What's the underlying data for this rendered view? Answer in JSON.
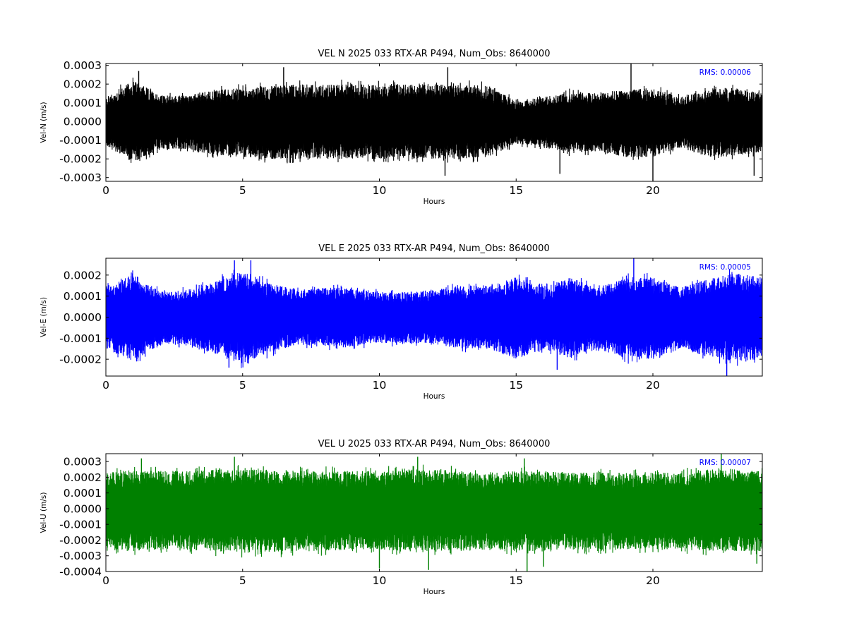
{
  "chart_data": [
    {
      "type": "line",
      "title": "VEL N 2025 033 RTX-AR  P494, Num_Obs: 8640000",
      "xlabel": "Hours",
      "ylabel": "Vel-N (m/s)",
      "xlim": [
        0,
        24
      ],
      "ylim": [
        -0.00032,
        0.00031
      ],
      "xticks": [
        "0",
        "5",
        "10",
        "15",
        "20"
      ],
      "yticks": [
        "0.0003",
        "0.0002",
        "0.0001",
        "0.0000",
        "-0.0001",
        "-0.0002",
        "-0.0003"
      ],
      "color": "#000000",
      "annotation": "RMS:  0.00006",
      "annotation_color": "#0000ff",
      "series": [
        {
          "x": [
            0,
            1,
            2,
            3,
            4,
            5,
            6,
            7,
            8,
            9,
            10,
            11,
            12,
            13,
            14,
            15,
            16,
            17,
            18,
            19,
            20,
            21,
            22,
            23,
            24
          ],
          "upper": [
            0.00013,
            0.00022,
            0.00014,
            0.00014,
            0.00017,
            0.00018,
            0.00019,
            0.0002,
            0.0002,
            0.0002,
            0.0002,
            0.0002,
            0.0002,
            0.0002,
            0.00019,
            0.00011,
            0.00013,
            0.00016,
            0.00015,
            0.00017,
            0.00018,
            0.00013,
            0.00017,
            0.00018,
            0.00015
          ],
          "lower": [
            -0.00013,
            -0.00022,
            -0.00015,
            -0.00015,
            -0.00018,
            -0.00019,
            -0.0002,
            -0.0002,
            -0.0002,
            -0.0002,
            -0.0002,
            -0.0002,
            -0.0002,
            -0.0002,
            -0.00019,
            -0.00012,
            -0.00014,
            -0.00017,
            -0.00016,
            -0.00019,
            -0.00019,
            -0.00014,
            -0.00019,
            -0.00019,
            -0.00016
          ],
          "peaks": [
            [
              1.2,
              0.00027
            ],
            [
              6.5,
              0.00029
            ],
            [
              12.5,
              0.00029
            ],
            [
              19.2,
              0.00031
            ],
            [
              20.0,
              -0.00032
            ],
            [
              12.4,
              -0.00029
            ],
            [
              16.6,
              -0.00028
            ],
            [
              23.7,
              -0.00029
            ]
          ]
        }
      ]
    },
    {
      "type": "line",
      "title": "VEL E 2025 033 RTX-AR  P494, Num_Obs: 8640000",
      "xlabel": "Hours",
      "ylabel": "Vel-E (m/s)",
      "xlim": [
        0,
        24
      ],
      "ylim": [
        -0.00028,
        0.00028
      ],
      "xticks": [
        "0",
        "5",
        "10",
        "15",
        "20"
      ],
      "yticks": [
        "0.0002",
        "0.0001",
        "0.0000",
        "-0.0001",
        "-0.0002"
      ],
      "color": "#0000ff",
      "annotation": "RMS:  0.00005",
      "annotation_color": "#0000ff",
      "series": [
        {
          "x": [
            0,
            1,
            2,
            3,
            4,
            5,
            6,
            7,
            8,
            9,
            10,
            11,
            12,
            13,
            14,
            15,
            16,
            17,
            18,
            19,
            20,
            21,
            22,
            23,
            24
          ],
          "upper": [
            0.00015,
            0.00021,
            0.00012,
            0.00013,
            0.00017,
            0.00022,
            0.00016,
            0.00013,
            0.00014,
            0.00014,
            0.00012,
            0.00012,
            0.00013,
            0.00015,
            0.00015,
            0.00019,
            0.00014,
            0.00019,
            0.00014,
            0.00019,
            0.00019,
            0.00014,
            0.00018,
            0.00021,
            0.00019
          ],
          "lower": [
            -0.00015,
            -0.00021,
            -0.00013,
            -0.00013,
            -0.00018,
            -0.00022,
            -0.00017,
            -0.00013,
            -0.00014,
            -0.00014,
            -0.00012,
            -0.00013,
            -0.00013,
            -0.00015,
            -0.00015,
            -0.0002,
            -0.00015,
            -0.0002,
            -0.00015,
            -0.0002,
            -0.0002,
            -0.00015,
            -0.00019,
            -0.00021,
            -0.0002
          ],
          "peaks": [
            [
              4.7,
              0.00027
            ],
            [
              5.3,
              0.00027
            ],
            [
              19.3,
              0.00028
            ],
            [
              22.7,
              -0.00028
            ],
            [
              4.5,
              -0.00024
            ],
            [
              16.5,
              -0.00025
            ]
          ]
        }
      ]
    },
    {
      "type": "line",
      "title": "VEL U 2025 033 RTX-AR  P494, Num_Obs: 8640000",
      "xlabel": "Hours",
      "ylabel": "Vel-U (m/s)",
      "xlim": [
        0,
        24
      ],
      "ylim": [
        -0.0004,
        0.00035
      ],
      "xticks": [
        "0",
        "5",
        "10",
        "15",
        "20"
      ],
      "yticks": [
        "0.0003",
        "0.0002",
        "0.0001",
        "0.0000",
        "-0.0001",
        "-0.0002",
        "-0.0003",
        "-0.0004"
      ],
      "color": "#008000",
      "annotation": "RMS:  0.00007",
      "annotation_color": "#0000ff",
      "series": [
        {
          "x": [
            0,
            1,
            2,
            3,
            4,
            5,
            6,
            7,
            8,
            9,
            10,
            11,
            12,
            13,
            14,
            15,
            16,
            17,
            18,
            19,
            20,
            21,
            22,
            23,
            24
          ],
          "upper": [
            0.00023,
            0.00025,
            0.00024,
            0.00024,
            0.00025,
            0.00025,
            0.00025,
            0.00024,
            0.00024,
            0.00024,
            0.00024,
            0.00025,
            0.00025,
            0.00024,
            0.00023,
            0.00024,
            0.00024,
            0.00023,
            0.00023,
            0.00023,
            0.00023,
            0.00023,
            0.00025,
            0.00025,
            0.00024
          ],
          "lower": [
            -0.00025,
            -0.00027,
            -0.00026,
            -0.00027,
            -0.00027,
            -0.00028,
            -0.00028,
            -0.00027,
            -0.00027,
            -0.00026,
            -0.00026,
            -0.00027,
            -0.00027,
            -0.00027,
            -0.00026,
            -0.00027,
            -0.00027,
            -0.00026,
            -0.00026,
            -0.00026,
            -0.00026,
            -0.00026,
            -0.00027,
            -0.00027,
            -0.00027
          ],
          "peaks": [
            [
              1.3,
              0.00032
            ],
            [
              4.7,
              0.00033
            ],
            [
              11.4,
              0.00033
            ],
            [
              15.3,
              0.00032
            ],
            [
              22.5,
              0.00035
            ],
            [
              10.0,
              -0.00038
            ],
            [
              11.8,
              -0.00039
            ],
            [
              15.4,
              -0.0004
            ],
            [
              16.0,
              -0.00037
            ],
            [
              23.8,
              -0.00035
            ]
          ]
        }
      ]
    }
  ]
}
